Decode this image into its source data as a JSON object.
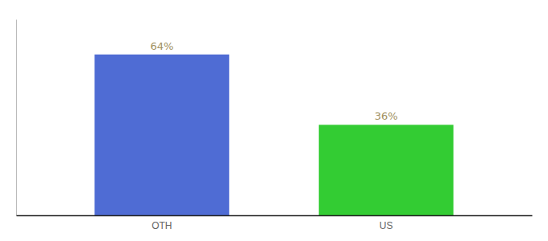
{
  "chart_data": {
    "type": "bar",
    "categories": [
      "OTH",
      "US"
    ],
    "values": [
      64,
      36
    ],
    "colors": [
      "#4f6cd4",
      "#33cc33"
    ],
    "ylim": [
      0,
      78
    ],
    "data_labels": true,
    "value_labels": [
      "64%",
      "36%"
    ],
    "tick_labels": "x",
    "grid": false
  }
}
